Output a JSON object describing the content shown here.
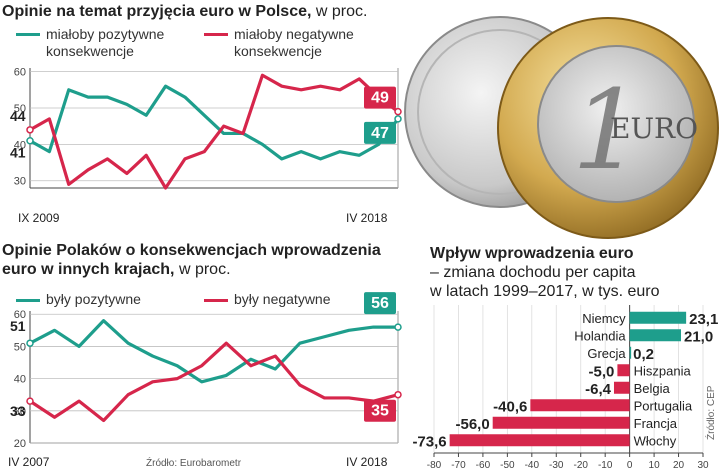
{
  "colors": {
    "positive": "#1e9e8c",
    "negative": "#d6264b",
    "grid": "#bfbfbf",
    "text": "#222222"
  },
  "chart_data": [
    {
      "type": "line",
      "title": "Opinie na temat przyjęcia euro w Polsce,",
      "unit": "w proc.",
      "ylim": [
        28,
        61
      ],
      "yticks": [
        30,
        40,
        50,
        60
      ],
      "start_label": "IX 2009",
      "end_label": "IV 2018",
      "series": [
        {
          "name": "miałoby pozytywne konsekwencje",
          "color": "#1e9e8c",
          "start_label": "41",
          "end_label": "47",
          "values": [
            41,
            38,
            55,
            53,
            53,
            51,
            48,
            56,
            53,
            48,
            43,
            43,
            40,
            36,
            38,
            36,
            38,
            37,
            40,
            47
          ]
        },
        {
          "name": "miałoby negatywne konsekwencje",
          "color": "#d6264b",
          "start_label": "44",
          "end_label": "49",
          "values": [
            44,
            47,
            29,
            33,
            36,
            32,
            37,
            28,
            36,
            38,
            45,
            43,
            59,
            56,
            55,
            56,
            55,
            58,
            53,
            49
          ]
        }
      ],
      "legend": [
        "miałoby pozytywne",
        "konsekwencje",
        "miałoby negatywne",
        "konsekwencje"
      ]
    },
    {
      "type": "line",
      "title": "Opinie Polaków o konsekwencjach wprowadzenia euro w innych krajach,",
      "title_line1": "Opinie Polaków o konsekwencjach wprowadzenia",
      "title_line2": "euro w innych krajach,",
      "unit": "w proc.",
      "ylim": [
        20,
        61
      ],
      "yticks": [
        20,
        30,
        40,
        50,
        60
      ],
      "start_label": "IV 2007",
      "end_label": "IV 2018",
      "source": "Źródło: Eurobarometr",
      "series": [
        {
          "name": "były pozytywne",
          "color": "#1e9e8c",
          "start_label": "51",
          "end_label": "56",
          "values": [
            51,
            55,
            50,
            58,
            51,
            47,
            44,
            39,
            41,
            46,
            43,
            51,
            53,
            55,
            56,
            56
          ]
        },
        {
          "name": "były negatywne",
          "color": "#d6264b",
          "start_label": "33",
          "end_label": "35",
          "values": [
            33,
            28,
            33,
            27,
            35,
            39,
            40,
            44,
            51,
            44,
            47,
            38,
            34,
            34,
            33,
            35
          ]
        }
      ],
      "legend": [
        "były pozytywne",
        "były negatywne"
      ]
    },
    {
      "type": "bar",
      "orientation": "horizontal",
      "title": "Wpływ wprowadzenia euro",
      "subtitle_line1": "– zmiana dochodu per capita",
      "subtitle_line2": "w latach 1999–2017, w tys. euro",
      "source": "Źródło: CEP",
      "xlim": [
        -80,
        30
      ],
      "xticks": [
        -80,
        -70,
        -60,
        -50,
        -40,
        -30,
        -20,
        -10,
        0,
        10,
        20,
        30
      ],
      "xtick_labels": [
        "-80",
        "-70",
        "-60",
        "-50",
        "-40",
        "-30",
        "-20",
        "-10",
        "0",
        "10",
        "20",
        "30"
      ],
      "categories": [
        "Niemcy",
        "Holandia",
        "Grecja",
        "Hiszpania",
        "Belgia",
        "Portugalia",
        "Francja",
        "Włochy"
      ],
      "values": [
        23.1,
        21.0,
        0.2,
        -5.0,
        -6.4,
        -40.6,
        -56.0,
        -73.6
      ],
      "value_labels": [
        "23,1",
        "21,0",
        "0,2",
        "-5,0",
        "-6,4",
        "-40,6",
        "-56,0",
        "-73,6"
      ]
    }
  ]
}
